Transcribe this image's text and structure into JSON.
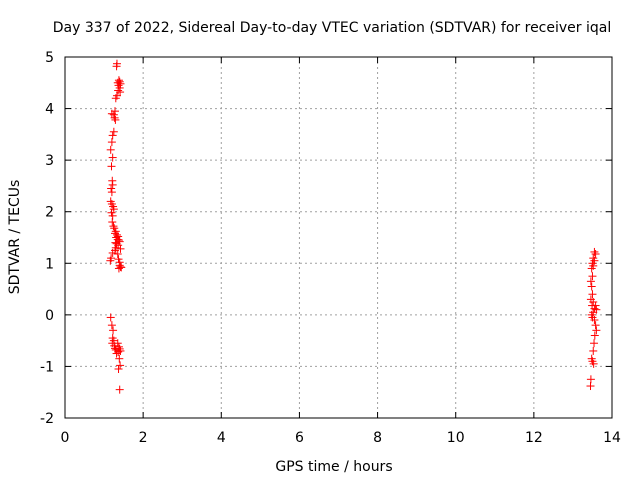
{
  "chart_data": {
    "type": "scatter",
    "title": "Day 337 of 2022, Sidereal Day-to-day VTEC variation (SDTVAR) for receiver iqal",
    "xlabel": "GPS time / hours",
    "ylabel": "SDTVAR / TECUs",
    "xlim": [
      0,
      14
    ],
    "ylim": [
      -2,
      5
    ],
    "xticks": [
      0,
      2,
      4,
      6,
      8,
      10,
      12,
      14
    ],
    "yticks": [
      -2,
      -1,
      0,
      1,
      2,
      3,
      4,
      5
    ],
    "grid": true,
    "marker": "+",
    "series": [
      {
        "color": "#ff0000",
        "points": [
          [
            1.33,
            4.87
          ],
          [
            1.32,
            4.82
          ],
          [
            1.38,
            4.55
          ],
          [
            1.4,
            4.52
          ],
          [
            1.35,
            4.5
          ],
          [
            1.42,
            4.48
          ],
          [
            1.37,
            4.45
          ],
          [
            1.4,
            4.4
          ],
          [
            1.36,
            4.35
          ],
          [
            1.41,
            4.32
          ],
          [
            1.33,
            4.25
          ],
          [
            1.3,
            4.2
          ],
          [
            1.28,
            3.95
          ],
          [
            1.2,
            3.9
          ],
          [
            1.25,
            3.88
          ],
          [
            1.27,
            3.82
          ],
          [
            1.29,
            3.78
          ],
          [
            1.25,
            3.55
          ],
          [
            1.22,
            3.48
          ],
          [
            1.2,
            3.35
          ],
          [
            1.17,
            3.2
          ],
          [
            1.22,
            3.05
          ],
          [
            1.19,
            2.88
          ],
          [
            1.21,
            2.6
          ],
          [
            1.22,
            2.52
          ],
          [
            1.18,
            2.45
          ],
          [
            1.2,
            2.38
          ],
          [
            1.17,
            2.2
          ],
          [
            1.2,
            2.15
          ],
          [
            1.23,
            2.1
          ],
          [
            1.25,
            2.05
          ],
          [
            1.19,
            1.98
          ],
          [
            1.22,
            1.92
          ],
          [
            1.21,
            1.8
          ],
          [
            1.24,
            1.72
          ],
          [
            1.26,
            1.68
          ],
          [
            1.3,
            1.62
          ],
          [
            1.28,
            1.58
          ],
          [
            1.33,
            1.55
          ],
          [
            1.36,
            1.52
          ],
          [
            1.31,
            1.5
          ],
          [
            1.35,
            1.46
          ],
          [
            1.38,
            1.45
          ],
          [
            1.4,
            1.42
          ],
          [
            1.29,
            1.4
          ],
          [
            1.32,
            1.38
          ],
          [
            1.36,
            1.35
          ],
          [
            1.3,
            1.3
          ],
          [
            1.42,
            1.28
          ],
          [
            1.28,
            1.25
          ],
          [
            1.22,
            1.2
          ],
          [
            1.35,
            1.18
          ],
          [
            1.18,
            1.1
          ],
          [
            1.37,
            1.08
          ],
          [
            1.16,
            1.05
          ],
          [
            1.4,
            1.02
          ],
          [
            1.4,
            0.96
          ],
          [
            1.42,
            0.93
          ],
          [
            1.38,
            0.9
          ],
          [
            1.44,
            0.92
          ],
          [
            1.17,
            -0.05
          ],
          [
            1.2,
            -0.2
          ],
          [
            1.23,
            -0.3
          ],
          [
            1.22,
            -0.45
          ],
          [
            1.25,
            -0.5
          ],
          [
            1.21,
            -0.55
          ],
          [
            1.26,
            -0.6
          ],
          [
            1.28,
            -0.65
          ],
          [
            1.3,
            -0.68
          ],
          [
            1.35,
            -0.55
          ],
          [
            1.38,
            -0.62
          ],
          [
            1.4,
            -0.66
          ],
          [
            1.42,
            -0.7
          ],
          [
            1.36,
            -0.72
          ],
          [
            1.32,
            -0.75
          ],
          [
            1.39,
            -0.85
          ],
          [
            1.41,
            -0.98
          ],
          [
            1.37,
            -1.05
          ],
          [
            1.4,
            -1.45
          ],
          [
            13.55,
            1.22
          ],
          [
            13.58,
            1.18
          ],
          [
            13.52,
            1.1
          ],
          [
            13.55,
            1.05
          ],
          [
            13.5,
            1.0
          ],
          [
            13.52,
            0.95
          ],
          [
            13.48,
            0.9
          ],
          [
            13.5,
            0.75
          ],
          [
            13.46,
            0.65
          ],
          [
            13.48,
            0.55
          ],
          [
            13.5,
            0.4
          ],
          [
            13.46,
            0.3
          ],
          [
            13.52,
            0.25
          ],
          [
            13.49,
            0.18
          ],
          [
            13.55,
            0.12
          ],
          [
            13.58,
            0.18
          ],
          [
            13.6,
            0.1
          ],
          [
            13.52,
            0.05
          ],
          [
            13.48,
            0.0
          ],
          [
            13.5,
            -0.05
          ],
          [
            13.55,
            -0.1
          ],
          [
            13.58,
            -0.2
          ],
          [
            13.6,
            -0.3
          ],
          [
            13.56,
            -0.4
          ],
          [
            13.54,
            -0.55
          ],
          [
            13.52,
            -0.7
          ],
          [
            13.48,
            -0.85
          ],
          [
            13.5,
            -0.9
          ],
          [
            13.53,
            -0.95
          ],
          [
            13.46,
            -1.25
          ],
          [
            13.45,
            -1.38
          ]
        ]
      }
    ]
  }
}
